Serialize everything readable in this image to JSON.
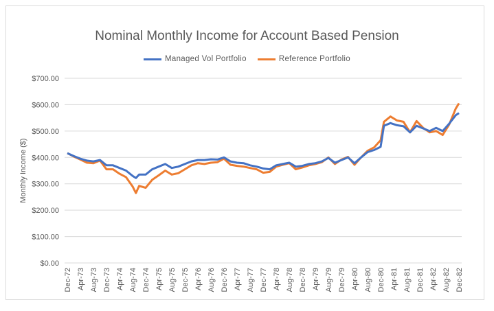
{
  "chart_data": {
    "type": "line",
    "title": "Nominal Monthly Income for Account Based Pension",
    "xlabel": "",
    "ylabel": "Monthly Income ($)",
    "ylim": [
      0,
      700
    ],
    "yticks": [
      "$0.00",
      "$100.00",
      "$200.00",
      "$300.00",
      "$400.00",
      "$500.00",
      "$600.00",
      "$700.00"
    ],
    "xtick_labels": [
      "Dec-72",
      "Apr-73",
      "Aug-73",
      "Dec-73",
      "Apr-74",
      "Aug-74",
      "Dec-74",
      "Apr-75",
      "Aug-75",
      "Dec-75",
      "Apr-76",
      "Aug-76",
      "Dec-76",
      "Apr-77",
      "Aug-77",
      "Dec-77",
      "Apr-78",
      "Aug-78",
      "Dec-78",
      "Apr-79",
      "Aug-79",
      "Dec-79",
      "Apr-80",
      "Aug-80",
      "Dec-80",
      "Apr-81",
      "Aug-81",
      "Dec-81",
      "Apr-82",
      "Aug-82",
      "Dec-82"
    ],
    "grid": true,
    "legend_position": "top",
    "x_month_index": [
      0,
      2,
      4,
      6,
      8,
      10,
      12,
      14,
      16,
      18,
      20,
      21,
      22,
      24,
      26,
      28,
      30,
      32,
      34,
      36,
      38,
      40,
      42,
      44,
      46,
      48,
      50,
      52,
      54,
      56,
      58,
      60,
      62,
      64,
      66,
      68,
      70,
      72,
      74,
      76,
      78,
      80,
      82,
      84,
      86,
      88,
      90,
      92,
      94,
      96,
      97,
      99,
      101,
      103,
      105,
      107,
      109,
      111,
      113,
      115,
      117,
      119,
      120
    ],
    "series": [
      {
        "name": "Managed Vol Portfolio",
        "color": "#4472C4",
        "values": [
          416,
          405,
          395,
          388,
          385,
          390,
          370,
          370,
          360,
          350,
          330,
          322,
          335,
          335,
          355,
          365,
          375,
          360,
          365,
          375,
          385,
          390,
          390,
          393,
          392,
          400,
          385,
          380,
          378,
          370,
          365,
          358,
          355,
          370,
          375,
          380,
          365,
          368,
          375,
          378,
          385,
          398,
          380,
          390,
          400,
          378,
          400,
          420,
          428,
          440,
          520,
          530,
          522,
          518,
          495,
          520,
          510,
          500,
          512,
          500,
          528,
          560,
          568
        ]
      },
      {
        "name": "Reference Portfolio",
        "color": "#ED7D31",
        "values": [
          416,
          403,
          392,
          380,
          378,
          388,
          355,
          355,
          338,
          325,
          290,
          265,
          292,
          285,
          315,
          332,
          350,
          335,
          340,
          355,
          370,
          378,
          375,
          380,
          382,
          395,
          372,
          368,
          365,
          360,
          355,
          342,
          345,
          365,
          372,
          378,
          355,
          362,
          370,
          375,
          382,
          400,
          375,
          392,
          402,
          372,
          400,
          425,
          438,
          465,
          535,
          555,
          540,
          535,
          495,
          538,
          512,
          495,
          500,
          485,
          525,
          585,
          605
        ]
      }
    ]
  }
}
